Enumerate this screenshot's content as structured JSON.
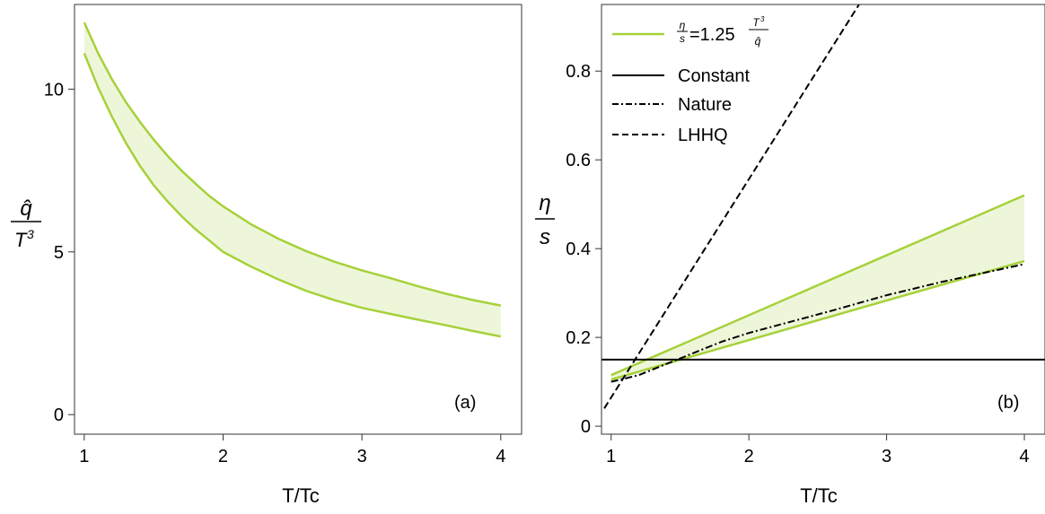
{
  "chart_data": [
    {
      "id": "a",
      "type": "area",
      "panel_label": "(a)",
      "xlabel": "T/Tc",
      "ylabel": {
        "numerator": "q̂",
        "denominator": "T",
        "denominator_exp": "3"
      },
      "xlim": [
        0.93,
        4.15
      ],
      "ylim": [
        -0.6,
        12.6
      ],
      "xticks": [
        1,
        2,
        3,
        4
      ],
      "yticks": [
        0,
        5,
        10
      ],
      "grid": false,
      "color": "#a6d13a",
      "fill_color": "#eef6da",
      "band": {
        "x": [
          1.0,
          1.1,
          1.2,
          1.3,
          1.4,
          1.5,
          1.6,
          1.7,
          1.8,
          1.9,
          2.0,
          2.2,
          2.4,
          2.6,
          2.8,
          3.0,
          3.2,
          3.4,
          3.6,
          3.8,
          4.0
        ],
        "upper": [
          12.05,
          11.1,
          10.3,
          9.6,
          9.0,
          8.45,
          7.95,
          7.5,
          7.1,
          6.72,
          6.4,
          5.85,
          5.4,
          5.02,
          4.7,
          4.43,
          4.2,
          3.95,
          3.72,
          3.52,
          3.35
        ],
        "lower": [
          11.1,
          10.05,
          9.15,
          8.35,
          7.65,
          7.05,
          6.55,
          6.1,
          5.7,
          5.35,
          5.0,
          4.55,
          4.15,
          3.8,
          3.52,
          3.28,
          3.1,
          2.92,
          2.75,
          2.57,
          2.4
        ]
      }
    },
    {
      "id": "b",
      "type": "line",
      "panel_label": "(b)",
      "xlabel": "T/Tc",
      "ylabel": {
        "numerator": "η",
        "denominator": "s"
      },
      "xlim": [
        0.93,
        4.15
      ],
      "ylim": [
        -0.018,
        0.95
      ],
      "xticks": [
        1,
        2,
        3,
        4
      ],
      "yticks": [
        0,
        0.2,
        0.4,
        0.6,
        0.8
      ],
      "ytick_labels": [
        "0",
        "0.2",
        "0.4",
        "0.6",
        "0.8"
      ],
      "grid": false,
      "legend_position": "top-left",
      "band": {
        "name": "=1.25",
        "color": "#a6d13a",
        "fill_color": "#eef6da",
        "x": [
          1.0,
          4.0
        ],
        "upper": [
          0.115,
          0.52
        ],
        "lower": [
          0.105,
          0.372
        ]
      },
      "lines": [
        {
          "name": "Constant",
          "style": "solid",
          "color": "#000000",
          "x": [
            0.93,
            4.15
          ],
          "y": [
            0.15,
            0.15
          ]
        },
        {
          "name": "Nature",
          "style": "dashdot",
          "color": "#000000",
          "x": [
            1.0,
            1.2,
            1.4,
            1.6,
            1.8,
            2.0,
            2.3,
            2.6,
            3.0,
            3.4,
            3.7,
            4.0
          ],
          "y": [
            0.1,
            0.115,
            0.14,
            0.165,
            0.19,
            0.21,
            0.235,
            0.26,
            0.295,
            0.325,
            0.345,
            0.365
          ]
        },
        {
          "name": "LHHQ",
          "style": "dashed",
          "color": "#000000",
          "x": [
            0.95,
            2.8
          ],
          "y": [
            0.04,
            0.95
          ]
        }
      ]
    }
  ]
}
